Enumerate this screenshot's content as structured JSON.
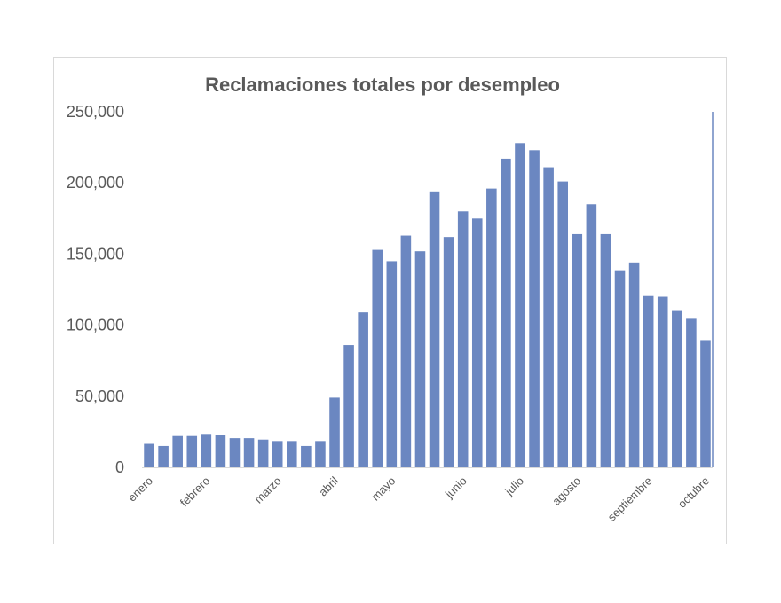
{
  "chart_data": {
    "type": "bar",
    "title": "Reclamaciones totales por desempleo",
    "xlabel": "",
    "ylabel": "",
    "ylim": [
      0,
      250000
    ],
    "yticks": [
      0,
      50000,
      100000,
      150000,
      200000,
      250000
    ],
    "ytick_labels": [
      "0",
      "50,000",
      "100,000",
      "150,000",
      "200,000",
      "250,000"
    ],
    "month_labels": [
      {
        "label": "enero",
        "bar_index": 0
      },
      {
        "label": "febrero",
        "bar_index": 4
      },
      {
        "label": "marzo",
        "bar_index": 9
      },
      {
        "label": "abril",
        "bar_index": 13
      },
      {
        "label": "mayo",
        "bar_index": 17
      },
      {
        "label": "junio",
        "bar_index": 22
      },
      {
        "label": "julio",
        "bar_index": 26
      },
      {
        "label": "agosto",
        "bar_index": 30
      },
      {
        "label": "septiembre",
        "bar_index": 35
      },
      {
        "label": "octubre",
        "bar_index": 39
      }
    ],
    "values": [
      16500,
      15000,
      22000,
      22000,
      23500,
      23000,
      20500,
      20500,
      19500,
      18500,
      18500,
      15000,
      18500,
      49000,
      86000,
      109000,
      153000,
      145000,
      163000,
      152000,
      194000,
      162000,
      180000,
      175000,
      196000,
      217000,
      228000,
      223000,
      211000,
      201000,
      164000,
      185000,
      164000,
      138000,
      143500,
      120500,
      120000,
      110000,
      104500,
      89500
    ],
    "bar_color": "#6b87c1",
    "grid": false,
    "legend": "none"
  }
}
